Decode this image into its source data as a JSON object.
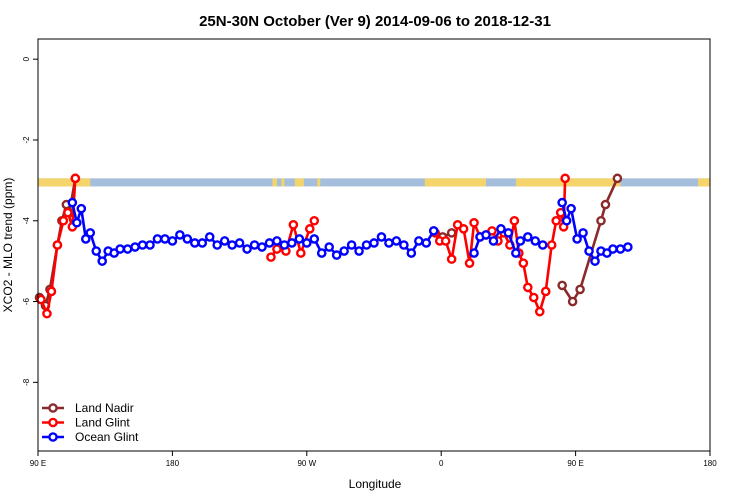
{
  "chart_data": {
    "type": "line",
    "title": "25N-30N October (Ver 9)   2014-09-06 to 2018-12-31",
    "xlabel": "Longitude",
    "ylabel": "XCO2 - MLO trend (ppm)",
    "x_ticks": [
      {
        "value": 90,
        "label": "90 E"
      },
      {
        "value": 180,
        "label": "180"
      },
      {
        "value": 270,
        "label": "90 W"
      },
      {
        "value": 360,
        "label": "0"
      },
      {
        "value": 450,
        "label": "90 E"
      },
      {
        "value": 540,
        "label": "180"
      }
    ],
    "y_ticks": [
      0,
      -2,
      -4,
      -6,
      -8
    ],
    "xlim": [
      90,
      540
    ],
    "ylim": [
      -9.7,
      0.5
    ],
    "grid": false,
    "legend_position": "bottom-left",
    "colors": {
      "land_nadir": "#8b2a2a",
      "land_glint": "#ff0000",
      "ocean_glint": "#0000ff",
      "map_ocean": "#a4bedb",
      "map_land": "#f5d56b"
    },
    "map_strip": {
      "y_top": -2.95,
      "y_bottom": -3.15,
      "land_ranges": [
        [
          90,
          125
        ],
        [
          247,
          250
        ],
        [
          253,
          255
        ],
        [
          262,
          268
        ],
        [
          277,
          279
        ],
        [
          349,
          390
        ],
        [
          410,
          411
        ],
        [
          411,
          480
        ],
        [
          532,
          540
        ]
      ]
    },
    "series": [
      {
        "name": "Land Nadir",
        "key": "land_nadir",
        "segments": [
          [
            [
              91,
              -5.9
            ],
            [
              95,
              -6.1
            ],
            [
              98,
              -5.7
            ],
            [
              103,
              -4.6
            ],
            [
              106,
              -4.0
            ],
            [
              109,
              -3.6
            ],
            [
              111,
              -3.8
            ],
            [
              115,
              -2.95
            ]
          ],
          [
            [
              355,
              -4.25
            ],
            [
              361,
              -4.4
            ],
            [
              367,
              -4.3
            ]
          ],
          [
            [
              441,
              -5.6
            ],
            [
              448,
              -6.0
            ],
            [
              453,
              -5.7
            ],
            [
              467,
              -4.0
            ],
            [
              470,
              -3.6
            ],
            [
              478,
              -2.95
            ]
          ]
        ]
      },
      {
        "name": "Land Glint",
        "key": "land_glint",
        "segments": [
          [
            [
              92,
              -5.95
            ],
            [
              96,
              -6.3
            ],
            [
              99,
              -5.75
            ],
            [
              103,
              -4.6
            ],
            [
              107,
              -4.0
            ],
            [
              110,
              -3.8
            ],
            [
              113,
              -4.15
            ],
            [
              115,
              -2.95
            ]
          ],
          [
            [
              246,
              -4.9
            ],
            [
              250,
              -4.7
            ],
            [
              256,
              -4.75
            ],
            [
              261,
              -4.1
            ],
            [
              266,
              -4.8
            ],
            [
              272,
              -4.2
            ],
            [
              275,
              -4.0
            ]
          ],
          [
            [
              356,
              -4.3
            ],
            [
              359,
              -4.5
            ],
            [
              363,
              -4.5
            ],
            [
              367,
              -4.95
            ],
            [
              371,
              -4.1
            ],
            [
              375,
              -4.2
            ],
            [
              379,
              -5.05
            ],
            [
              382,
              -4.05
            ],
            [
              386,
              -4.4
            ],
            [
              390,
              -4.35
            ],
            [
              394,
              -4.25
            ],
            [
              398,
              -4.5
            ],
            [
              402,
              -4.3
            ],
            [
              406,
              -4.6
            ],
            [
              409,
              -4.0
            ],
            [
              412,
              -4.8
            ],
            [
              415,
              -5.05
            ],
            [
              418,
              -5.65
            ],
            [
              422,
              -5.9
            ],
            [
              426,
              -6.25
            ],
            [
              430,
              -5.75
            ],
            [
              434,
              -4.6
            ],
            [
              437,
              -4.0
            ],
            [
              440,
              -3.8
            ],
            [
              442,
              -4.15
            ],
            [
              443,
              -2.95
            ]
          ]
        ]
      },
      {
        "name": "Ocean Glint",
        "key": "ocean_glint",
        "segments": [
          [
            [
              113,
              -3.55
            ],
            [
              116,
              -4.05
            ],
            [
              119,
              -3.7
            ],
            [
              122,
              -4.45
            ],
            [
              125,
              -4.3
            ],
            [
              129,
              -4.75
            ],
            [
              133,
              -5.0
            ],
            [
              137,
              -4.75
            ],
            [
              141,
              -4.8
            ],
            [
              145,
              -4.7
            ],
            [
              150,
              -4.7
            ],
            [
              155,
              -4.65
            ],
            [
              160,
              -4.6
            ],
            [
              165,
              -4.6
            ],
            [
              170,
              -4.45
            ],
            [
              175,
              -4.45
            ],
            [
              180,
              -4.5
            ],
            [
              185,
              -4.35
            ],
            [
              190,
              -4.45
            ],
            [
              195,
              -4.55
            ],
            [
              200,
              -4.55
            ],
            [
              205,
              -4.4
            ],
            [
              210,
              -4.6
            ],
            [
              215,
              -4.5
            ],
            [
              220,
              -4.6
            ],
            [
              225,
              -4.55
            ],
            [
              230,
              -4.7
            ],
            [
              235,
              -4.6
            ],
            [
              240,
              -4.65
            ],
            [
              245,
              -4.55
            ],
            [
              250,
              -4.5
            ],
            [
              255,
              -4.6
            ],
            [
              260,
              -4.55
            ],
            [
              265,
              -4.45
            ],
            [
              270,
              -4.55
            ],
            [
              275,
              -4.45
            ],
            [
              280,
              -4.8
            ],
            [
              285,
              -4.65
            ],
            [
              290,
              -4.85
            ],
            [
              295,
              -4.75
            ],
            [
              300,
              -4.6
            ],
            [
              305,
              -4.75
            ],
            [
              310,
              -4.6
            ],
            [
              315,
              -4.55
            ],
            [
              320,
              -4.4
            ],
            [
              325,
              -4.55
            ],
            [
              330,
              -4.5
            ],
            [
              335,
              -4.6
            ],
            [
              340,
              -4.8
            ],
            [
              345,
              -4.5
            ],
            [
              350,
              -4.55
            ],
            [
              355,
              -4.25
            ]
          ],
          [
            [
              382,
              -4.8
            ],
            [
              386,
              -4.4
            ],
            [
              390,
              -4.35
            ],
            [
              395,
              -4.5
            ],
            [
              400,
              -4.2
            ],
            [
              405,
              -4.3
            ],
            [
              410,
              -4.8
            ],
            [
              413,
              -4.5
            ],
            [
              418,
              -4.4
            ],
            [
              423,
              -4.5
            ],
            [
              428,
              -4.6
            ]
          ],
          [
            [
              441,
              -3.55
            ],
            [
              444,
              -4.0
            ],
            [
              447,
              -3.7
            ],
            [
              451,
              -4.45
            ],
            [
              455,
              -4.3
            ],
            [
              459,
              -4.75
            ],
            [
              463,
              -5.0
            ],
            [
              467,
              -4.75
            ],
            [
              471,
              -4.8
            ],
            [
              475,
              -4.7
            ],
            [
              480,
              -4.7
            ],
            [
              485,
              -4.65
            ]
          ]
        ]
      }
    ]
  }
}
